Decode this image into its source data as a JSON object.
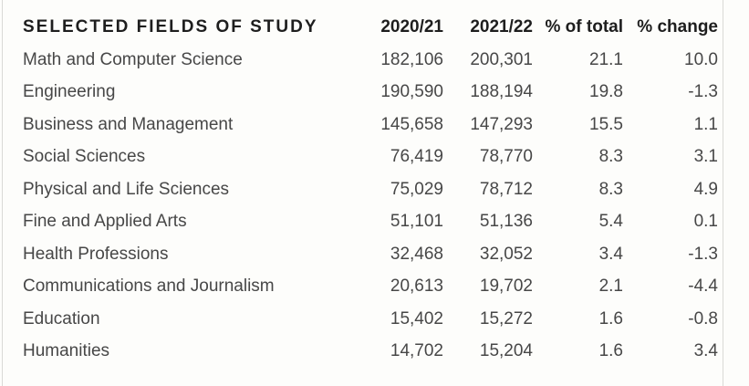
{
  "chart_data": {
    "type": "table",
    "title": "SELECTED FIELDS OF STUDY",
    "columns": [
      "SELECTED FIELDS OF STUDY",
      "2020/21",
      "2021/22",
      "% of total",
      "% change"
    ],
    "rows": [
      [
        "Math and Computer Science",
        "182,106",
        "200,301",
        "21.1",
        "10.0"
      ],
      [
        "Engineering",
        "190,590",
        "188,194",
        "19.8",
        "-1.3"
      ],
      [
        "Business and Management",
        "145,658",
        "147,293",
        "15.5",
        "1.1"
      ],
      [
        "Social Sciences",
        "76,419",
        "78,770",
        "8.3",
        "3.1"
      ],
      [
        "Physical and Life Sciences",
        "75,029",
        "78,712",
        "8.3",
        "4.9"
      ],
      [
        "Fine and Applied Arts",
        "51,101",
        "51,136",
        "5.4",
        "0.1"
      ],
      [
        "Health Professions",
        "32,468",
        "32,052",
        "3.4",
        "-1.3"
      ],
      [
        "Communications and Journalism",
        "20,613",
        "19,702",
        "2.1",
        "-4.4"
      ],
      [
        "Education",
        "15,402",
        "15,272",
        "1.6",
        "-0.8"
      ],
      [
        "Humanities",
        "14,702",
        "15,204",
        "1.6",
        "3.4"
      ]
    ],
    "layout": {
      "grid": "none",
      "numeric_alignment": "right",
      "side_rules": true
    }
  },
  "colors": {
    "background": "#fdfdfb",
    "header_text": "#1e1e1e",
    "body_text": "#474747",
    "border": "#d9d9d6"
  }
}
